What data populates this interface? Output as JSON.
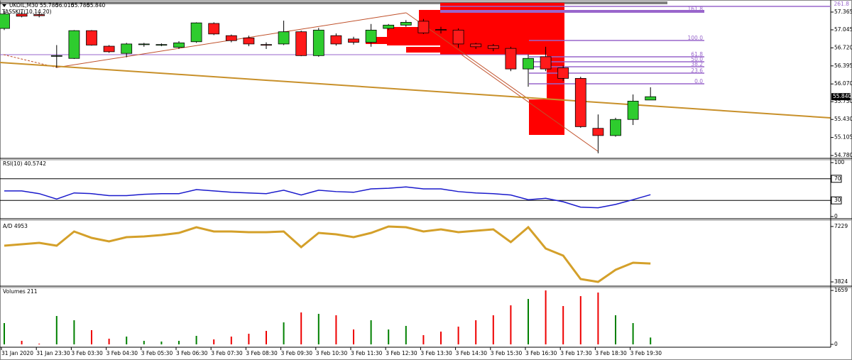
{
  "chart_data": [
    {
      "type": "candlestick",
      "title": "UKOIL,M30",
      "ohlc_labels": [
        "55.780",
        "56.010",
        "55.780",
        "55.840"
      ],
      "indicator": "TASSKIT(10,14,20)",
      "open": [
        57.07,
        57.33,
        57.32,
        56.57,
        56.53,
        57.03,
        56.75,
        56.62,
        56.78,
        56.77,
        56.73,
        56.83,
        57.16,
        56.94,
        56.9,
        56.78,
        56.79,
        57.01,
        56.58,
        56.94,
        56.88,
        56.82,
        57.07,
        57.13,
        57.2,
        57.05,
        57.04,
        56.79,
        56.76,
        56.71,
        56.34,
        56.56,
        56.36,
        56.17,
        55.27,
        55.14,
        55.43,
        55.78
      ],
      "high": [
        57.39,
        57.37,
        57.35,
        56.77,
        57.04,
        57.04,
        56.77,
        56.81,
        56.81,
        56.8,
        56.84,
        57.18,
        57.18,
        56.96,
        56.94,
        56.82,
        57.21,
        57.03,
        57.08,
        56.98,
        56.92,
        57.15,
        57.15,
        57.22,
        57.24,
        57.1,
        57.07,
        56.81,
        56.79,
        56.74,
        56.6,
        56.74,
        56.4,
        56.2,
        55.52,
        55.46,
        55.88,
        56.01
      ],
      "low": [
        57.04,
        57.27,
        57.27,
        56.36,
        56.52,
        56.76,
        56.63,
        56.55,
        56.74,
        56.75,
        56.7,
        56.81,
        56.95,
        56.82,
        56.75,
        56.7,
        56.77,
        56.57,
        56.56,
        56.76,
        56.78,
        56.74,
        57.04,
        57.1,
        56.97,
        56.98,
        56.72,
        56.7,
        56.66,
        56.3,
        56.02,
        56.3,
        56.12,
        55.28,
        54.82,
        55.12,
        55.33,
        55.78
      ],
      "close": [
        57.33,
        57.29,
        57.3,
        56.58,
        57.03,
        56.77,
        56.65,
        56.79,
        56.79,
        56.78,
        56.81,
        57.17,
        56.97,
        56.85,
        56.79,
        56.77,
        57.01,
        56.58,
        57.04,
        56.79,
        56.82,
        57.04,
        57.13,
        57.18,
        56.99,
        57.04,
        56.79,
        56.74,
        56.71,
        56.34,
        56.53,
        56.34,
        56.17,
        55.3,
        55.14,
        55.43,
        55.76,
        55.84
      ],
      "up_color": "#2ecc2e",
      "down_color": "#ff1a1a",
      "ylim": [
        54.742,
        57.531
      ],
      "yticks": [
        57.365,
        57.045,
        {
          "value": 56.72,
          "label": "56.720"
        },
        56.395,
        {
          "value": 56.07,
          "label": "56.070"
        },
        {
          "value": 55.75,
          "label": "55.750"
        },
        {
          "value": 55.43,
          "label": "55.430"
        },
        55.105,
        {
          "value": 54.78,
          "label": "54.780"
        }
      ],
      "fibonacci": {
        "levels": [
          "261.8",
          "161.8",
          "100.0",
          "61.8",
          "50.0",
          "38.2",
          "23.6",
          "0.0"
        ],
        "prices": [
          57.467,
          57.378,
          56.853,
          56.559,
          56.469,
          56.38,
          56.264,
          56.073
        ],
        "color": "#9966cc"
      }
    },
    {
      "type": "line",
      "title": "RSI(10) 40.5742",
      "color": "#1a1acc",
      "values": [
        47.5,
        47.5,
        42.5,
        32.5,
        43.8,
        42.5,
        38.8,
        38.8,
        41.3,
        42.5,
        42.5,
        50,
        47.5,
        45,
        43.8,
        42.5,
        48.8,
        40,
        48.8,
        46.3,
        45,
        51.3,
        52.5,
        55,
        51.3,
        51.3,
        46.3,
        43.8,
        42.5,
        40,
        31.3,
        33.8,
        27.5,
        17.5,
        16.3,
        22.5,
        31.3,
        40.5742
      ],
      "ylim": [
        0,
        100
      ],
      "yticks": [
        100,
        70,
        30,
        0
      ],
      "levels": [
        70,
        30
      ]
    },
    {
      "type": "line",
      "title": "A/D 4953",
      "color": "#d4a02a",
      "values": [
        6050,
        6138,
        6225,
        6050,
        6923,
        6531,
        6312,
        6574,
        6618,
        6705,
        6836,
        7185,
        6923,
        6923,
        6880,
        6880,
        6923,
        5963,
        6836,
        6749,
        6574,
        6836,
        7229,
        7185,
        6923,
        7054,
        6880,
        6967,
        7054,
        6269,
        7185,
        5876,
        5439,
        3999,
        3824,
        4566,
        5003,
        4953
      ],
      "ylim": [
        3606,
        7535
      ],
      "yticks": [
        7229,
        3824
      ]
    },
    {
      "type": "bar",
      "title": "Volumes 211",
      "up_color": "#008000",
      "down_color": "#ee0000",
      "values": [
        655,
        109,
        22,
        873,
        742,
        437,
        175,
        240,
        109,
        87,
        109,
        262,
        153,
        240,
        327,
        415,
        677,
        982,
        939,
        895,
        458,
        742,
        458,
        568,
        284,
        393,
        546,
        742,
        895,
        1201,
        1397,
        1659,
        1179,
        1484,
        1594,
        895,
        655,
        211
      ],
      "ylim": [
        0,
        1703
      ],
      "yticks": [
        1659,
        0
      ],
      "categories": [
        "31 Jan 2020",
        null,
        "31 Jan 23:30",
        null,
        "3 Feb 03:30",
        null,
        "3 Feb 04:30",
        null,
        "3 Feb 05:30",
        null,
        "3 Feb 06:30",
        null,
        "3 Feb 07:30",
        null,
        "3 Feb 08:30",
        null,
        "3 Feb 09:30",
        null,
        "3 Feb 10:30",
        null,
        "3 Feb 11:30",
        null,
        "3 Feb 12:30",
        null,
        "3 Feb 13:30",
        null,
        "3 Feb 14:30",
        null,
        "3 Feb 15:30",
        null,
        "3 Feb 16:30",
        null,
        "3 Feb 17:30",
        null,
        "3 Feb 18:30",
        null,
        "3 Feb 19:30",
        null
      ]
    }
  ]
}
